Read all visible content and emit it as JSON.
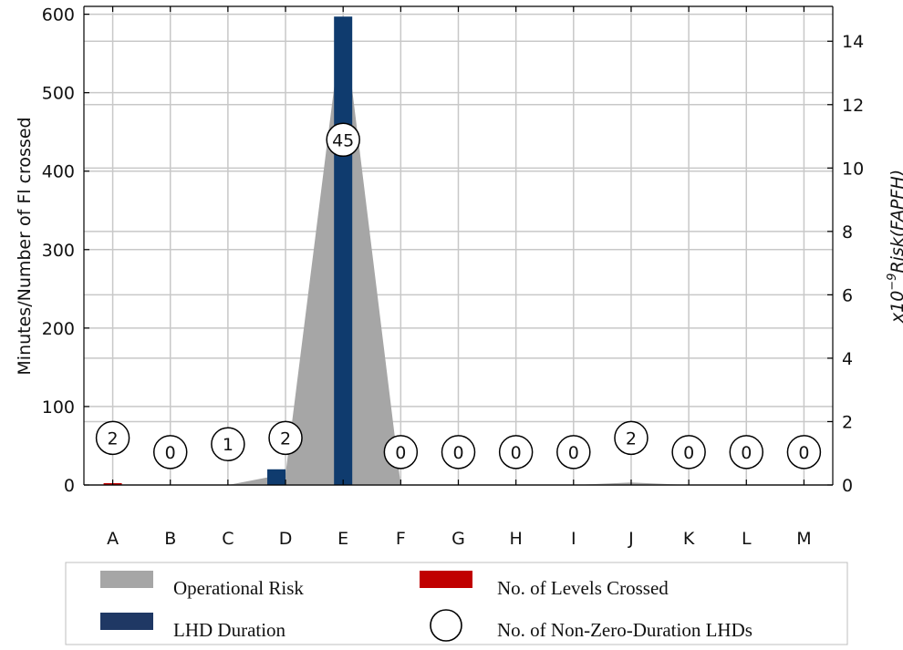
{
  "chart_data": {
    "type": "bar",
    "categories": [
      "A",
      "B",
      "C",
      "D",
      "E",
      "F",
      "G",
      "H",
      "I",
      "J",
      "K",
      "L",
      "M"
    ],
    "ylabel": "Minutes/Number of Fl crossed",
    "y2label_prefix": "x10",
    "y2label_exp": "−9",
    "y2label_main": "Risk(FAPFH)",
    "ylim": [
      0,
      610
    ],
    "y2lim": [
      0,
      15.1
    ],
    "yticks": [
      0,
      100,
      200,
      300,
      400,
      500,
      600
    ],
    "y2ticks": [
      0,
      2,
      4,
      6,
      8,
      10,
      12,
      14
    ],
    "grid": true,
    "series": [
      {
        "name": "Operational Risk",
        "kind": "area",
        "color": "#a6a6a6",
        "values": [
          0,
          0,
          0,
          0.35,
          14.8,
          0,
          0,
          0,
          0,
          0.08,
          0,
          0,
          0
        ]
      },
      {
        "name": "LHD Duration",
        "kind": "bar",
        "color": "#0f3b6e",
        "values": [
          0,
          0,
          0,
          20,
          597,
          0,
          0,
          0,
          0,
          0,
          0,
          0,
          0
        ]
      },
      {
        "name": "No. of Levels Crossed",
        "kind": "bar",
        "color": "#c00000",
        "values": [
          1,
          0,
          0,
          0,
          0,
          0,
          0,
          0,
          0,
          0,
          0,
          0,
          0
        ]
      },
      {
        "name": "No. of Non-Zero-Duration LHDs",
        "kind": "bubble",
        "values": [
          2,
          0,
          1,
          2,
          45,
          0,
          0,
          0,
          0,
          2,
          0,
          0,
          0
        ],
        "labels": [
          "2",
          "0",
          "1",
          "2",
          "45",
          "0",
          "0",
          "0",
          "0",
          "2",
          "0",
          "0",
          "0"
        ],
        "positions": [
          60,
          42,
          52,
          60,
          440,
          42,
          42,
          42,
          42,
          60,
          42,
          42,
          42
        ]
      }
    ],
    "legend": {
      "placement": "bottom",
      "items": [
        {
          "label": "Operational Risk",
          "swatch": "rect",
          "color": "#a6a6a6"
        },
        {
          "label": "No. of Levels Crossed",
          "swatch": "rect",
          "color": "#c00000"
        },
        {
          "label": "LHD Duration",
          "swatch": "rect",
          "color": "#1f3864"
        },
        {
          "label": "No. of Non-Zero-Duration LHDs",
          "swatch": "circle",
          "color": "#000000"
        }
      ]
    }
  }
}
